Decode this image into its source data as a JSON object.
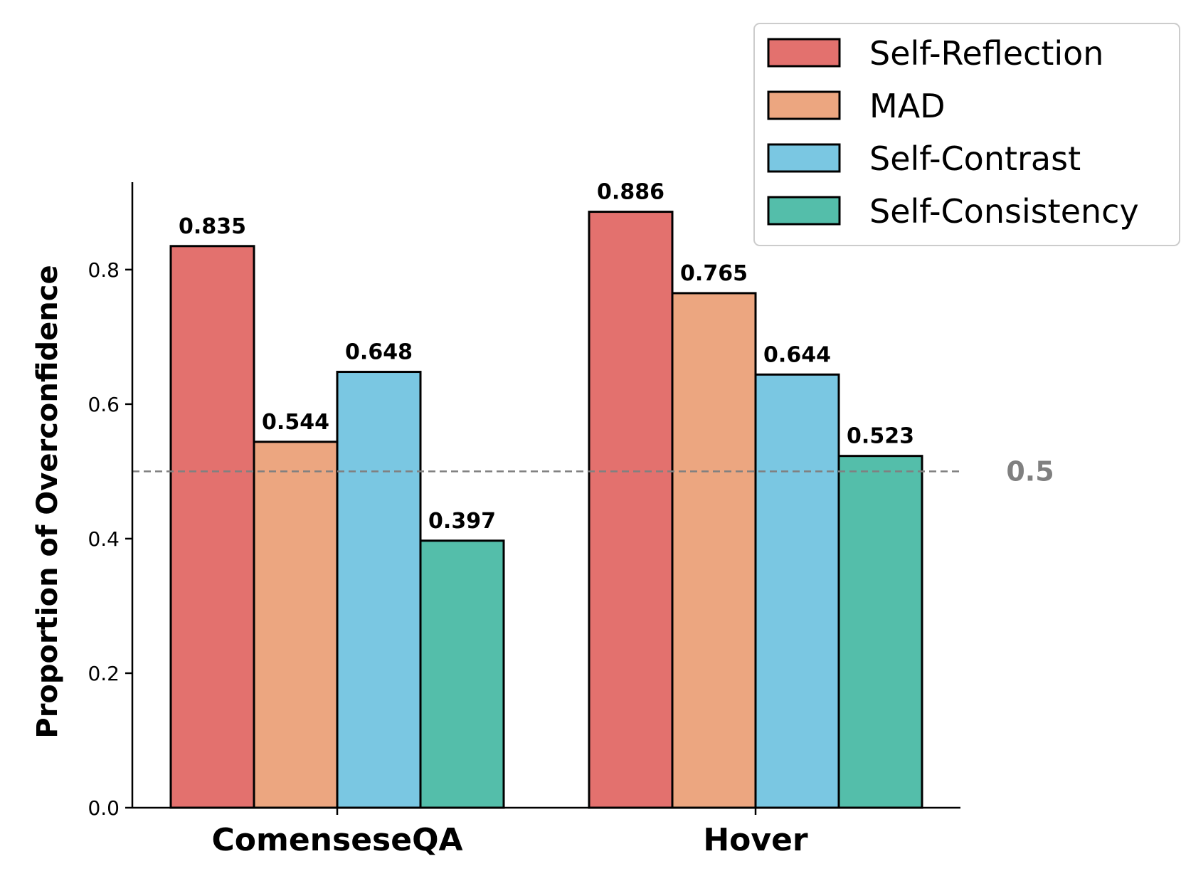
{
  "chart_data": {
    "type": "bar",
    "title": "",
    "xlabel": "",
    "ylabel": "Proportion of Overconfidence",
    "ylim": [
      0,
      0.93
    ],
    "yticks": [
      "0.0",
      "0.2",
      "0.4",
      "0.6",
      "0.8"
    ],
    "categories": [
      "ComenseseQA",
      "Hover"
    ],
    "series": [
      {
        "name": "Self-Reflection",
        "color": "#e3716e",
        "values": [
          0.835,
          0.886
        ],
        "labels": [
          "0.835",
          "0.886"
        ]
      },
      {
        "name": "MAD",
        "color": "#eca680",
        "values": [
          0.544,
          0.765
        ],
        "labels": [
          "0.544",
          "0.765"
        ]
      },
      {
        "name": "Self-Contrast",
        "color": "#7ac7e2",
        "values": [
          0.648,
          0.644
        ],
        "labels": [
          "0.648",
          "0.644"
        ]
      },
      {
        "name": "Self-Consistency",
        "color": "#54beaa",
        "values": [
          0.397,
          0.523
        ],
        "labels": [
          "0.397",
          "0.523"
        ]
      }
    ],
    "reference_line": {
      "value": 0.5,
      "label": "0.5",
      "color": "#808080",
      "style": "dashed"
    },
    "legend": {
      "position": "top-right"
    },
    "grid": false
  }
}
